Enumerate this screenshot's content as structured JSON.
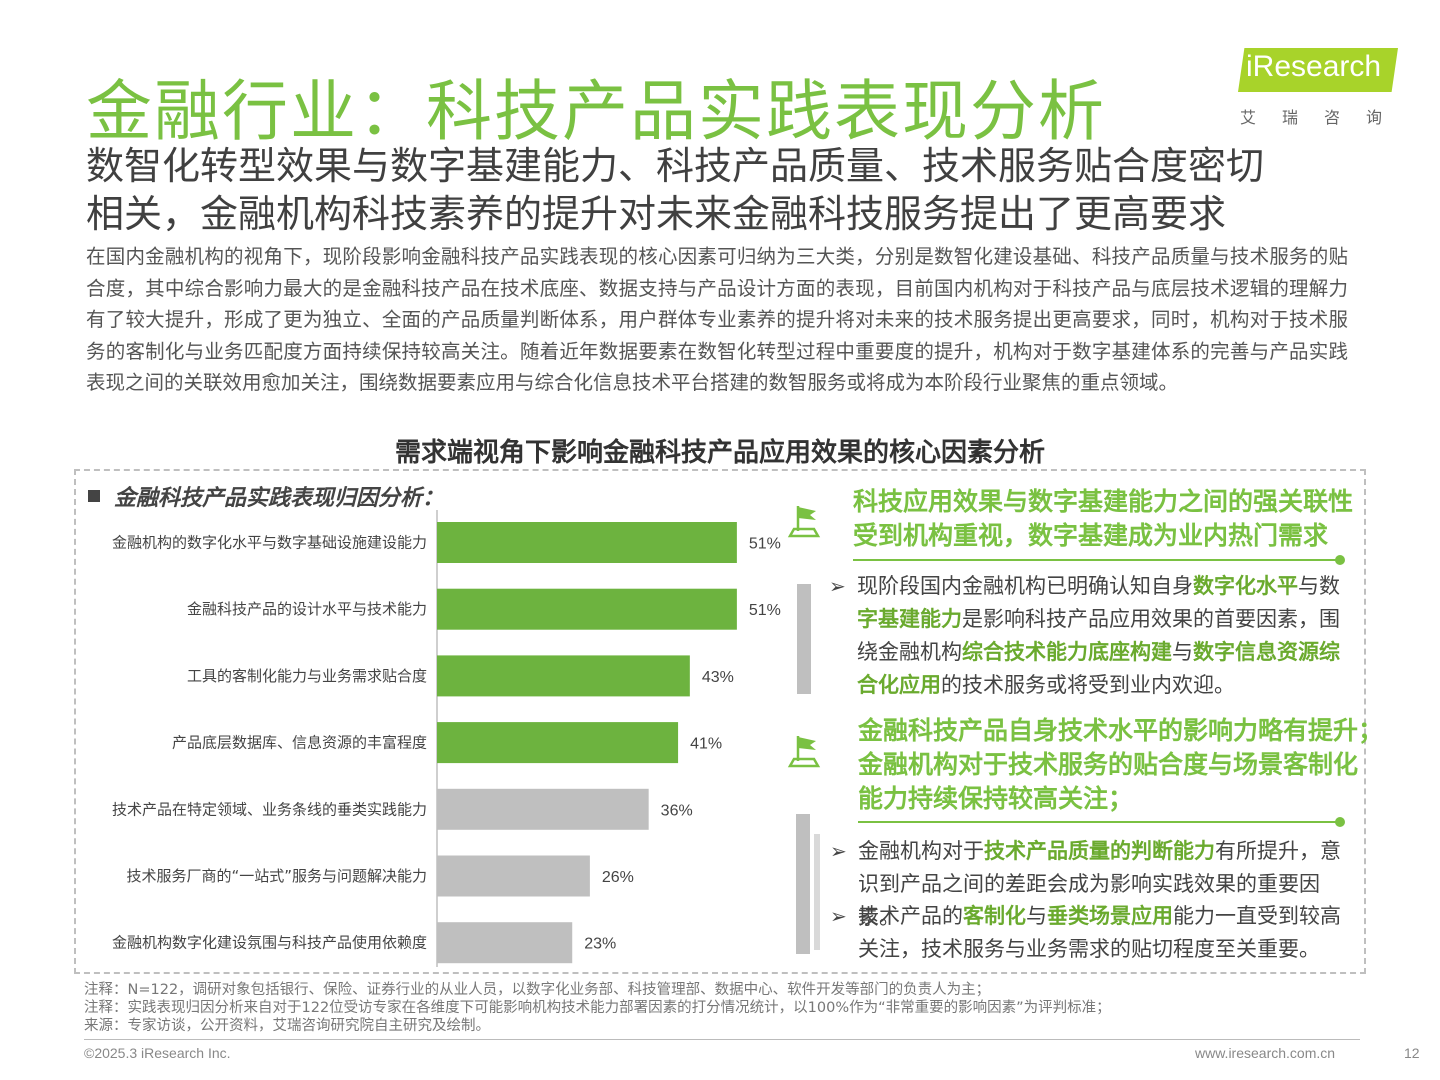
{
  "title": "金融行业：科技产品实践表现分析",
  "logo": {
    "brand": "iResearch",
    "cn": "艾瑞咨询"
  },
  "subtitle": [
    "数智化转型效果与数字基建能力、科技产品质量、技术服务贴合度密切",
    "相关，金融机构科技素养的提升对未来金融科技服务提出了更高要求"
  ],
  "intro": "在国内金融机构的视角下，现阶段影响金融科技产品实践表现的核心因素可归纳为三大类，分别是数智化建设基础、科技产品质量与技术服务的贴合度，其中综合影响力最大的是金融科技产品在技术底座、数据支持与产品设计方面的表现，目前国内机构对于科技产品与底层技术逻辑的理解力有了较大提升，形成了更为独立、全面的产品质量判断体系，用户群体专业素养的提升将对未来的技术服务提出更高要求，同时，机构对于技术服务的客制化与业务匹配度方面持续保持较高关注。随着近年数据要素在数智化转型过程中重要度的提升，机构对于数字基建体系的完善与产品实践表现之间的关联效用愈加关注，围绕数据要素应用与综合化信息技术平台搭建的数智服务或将成为本阶段行业聚焦的重点领域。",
  "section_title": "需求端视角下影响金融科技产品应用效果的核心因素分析",
  "left_heading": "金融科技产品实践表现归因分析：",
  "colors": {
    "green": "#7ac142",
    "bar_green": "#6db33f",
    "bar_gray": "#bfbfbf"
  },
  "chart_data": {
    "type": "bar",
    "orientation": "horizontal",
    "categories": [
      "金融机构的数字化水平与数字基础设施建设能力",
      "金融科技产品的设计水平与技术能力",
      "工具的客制化能力与业务需求贴合度",
      "产品底层数据库、信息资源的丰富程度",
      "技术产品在特定领域、业务条线的垂类实践能力",
      "技术服务厂商的“一站式”服务与问题解决能力",
      "金融机构数字化建设氛围与科技产品使用依赖度"
    ],
    "values": [
      51,
      51,
      43,
      41,
      36,
      26,
      23
    ],
    "value_labels": [
      "51%",
      "51%",
      "43%",
      "41%",
      "36%",
      "26%",
      "23%"
    ],
    "highlighted": [
      true,
      true,
      true,
      true,
      false,
      false,
      false
    ],
    "unit": "%",
    "xlim": [
      0,
      100
    ],
    "grid": false
  },
  "right": {
    "block1": {
      "heading": [
        "科技应用效果与数字基建能力之间的强关联性",
        "受到机构重视，数字基建成为业内热门需求"
      ],
      "bullet": {
        "l1a": "现阶段国内金融机构已明确认知自身",
        "l1b": "数字化水平",
        "l1c": "与数",
        "l2a": "字基建能力",
        "l2b": "是影响科技产品应用效果的首要因素，围",
        "l3a": "绕金融机构",
        "l3b": "综合技术能力底座构建",
        "l3c": "与",
        "l3d": "数字信息资源综",
        "l4a": "合化应用",
        "l4b": "的技术服务或将受到业内欢迎。"
      }
    },
    "block2": {
      "heading": [
        "金融科技产品自身技术水平的影响力略有提升；",
        "金融机构对于技术服务的贴合度与场景客制化",
        "能力持续保持较高关注；"
      ],
      "bullet1": {
        "l1a": "金融机构对于",
        "l1b": "技术产品质量的判断能力",
        "l1c": "有所提升，意",
        "l2": "识到产品之间的差距会成为影响实践效果的重要因素。"
      },
      "bullet2": {
        "l1a": "技术产品的",
        "l1b": "客制化",
        "l1c": "与",
        "l1d": "垂类场景应用",
        "l1e": "能力一直受到较高",
        "l2": "关注，技术服务与业务需求的贴切程度至关重要。"
      }
    }
  },
  "notes": [
    "注释：N=122，调研对象包括银行、保险、证券行业的从业人员，以数字化业务部、科技管理部、数据中心、软件开发等部门的负责人为主；",
    "注释：实践表现归因分析来自对于122位受访专家在各维度下可能影响机构技术能力部署因素的打分情况统计，以100%作为“非常重要的影响因素”为评判标准；",
    "来源：专家访谈，公开资料，艾瑞咨询研究院自主研究及绘制。"
  ],
  "footer": {
    "copyright": "©2025.3 iResearch Inc.",
    "url": "www.iresearch.com.cn",
    "page": "12"
  }
}
